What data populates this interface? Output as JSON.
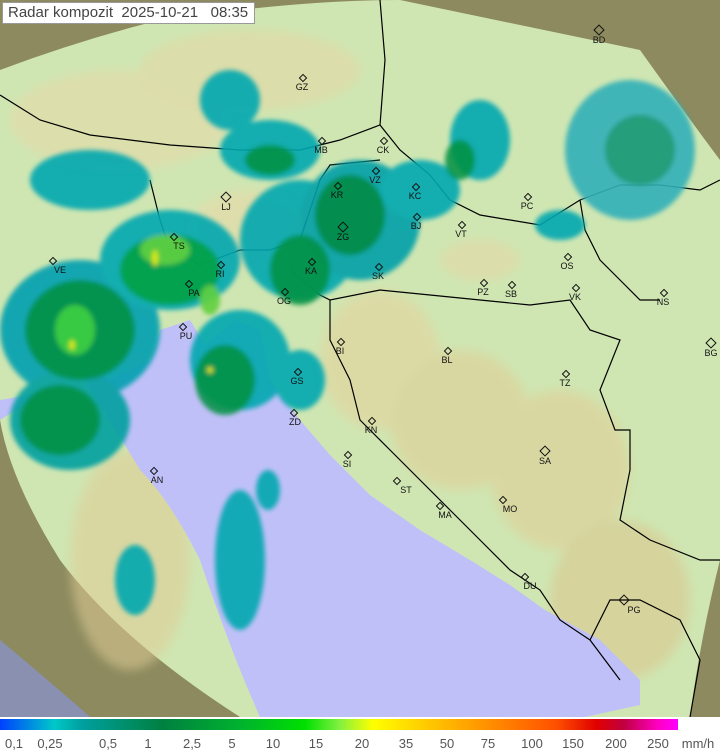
{
  "title": "Radar kompozit  2025-10-21   08:35",
  "legend": {
    "labels": [
      "0,1",
      "0,25",
      "0,5",
      "1",
      "2,5",
      "5",
      "10",
      "15",
      "20",
      "35",
      "50",
      "75",
      "100",
      "150",
      "200",
      "250"
    ],
    "unit": "mm/h"
  },
  "colors": {
    "land": "#cfe8b8",
    "sea": "#c0c0f8",
    "outside_range": "#8a8a60",
    "border": "#000000"
  },
  "cities": [
    {
      "code": "BD",
      "major": true
    },
    {
      "code": "GZ"
    },
    {
      "code": "MB"
    },
    {
      "code": "CK"
    },
    {
      "code": "VZ"
    },
    {
      "code": "KR"
    },
    {
      "code": "KC"
    },
    {
      "code": "LJ",
      "major": true
    },
    {
      "code": "TS"
    },
    {
      "code": "ZG",
      "major": true
    },
    {
      "code": "BJ"
    },
    {
      "code": "VT"
    },
    {
      "code": "PC"
    },
    {
      "code": "RI"
    },
    {
      "code": "KA"
    },
    {
      "code": "SK"
    },
    {
      "code": "OS"
    },
    {
      "code": "VE"
    },
    {
      "code": "PA"
    },
    {
      "code": "OG"
    },
    {
      "code": "PZ"
    },
    {
      "code": "SB"
    },
    {
      "code": "VK"
    },
    {
      "code": "NS"
    },
    {
      "code": "PU"
    },
    {
      "code": "BI"
    },
    {
      "code": "BL"
    },
    {
      "code": "BG",
      "major": true
    },
    {
      "code": "GS"
    },
    {
      "code": "TZ"
    },
    {
      "code": "ZD"
    },
    {
      "code": "KN"
    },
    {
      "code": "SA",
      "major": true
    },
    {
      "code": "AN"
    },
    {
      "code": "SI"
    },
    {
      "code": "ST"
    },
    {
      "code": "MA"
    },
    {
      "code": "MO"
    },
    {
      "code": "DU"
    },
    {
      "code": "PG",
      "major": true
    }
  ]
}
